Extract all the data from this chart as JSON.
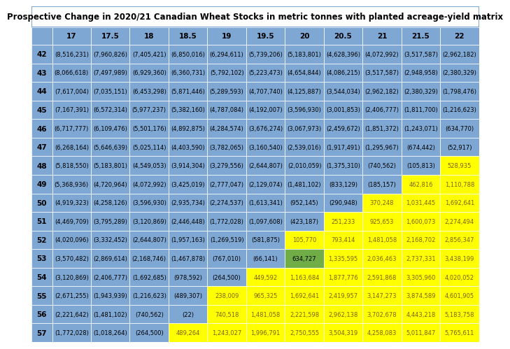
{
  "title": "Prospective Change in 2020/21 Canadian Wheat Stocks in metric tonnes with planted acreage-yield matrix",
  "col_headers": [
    "17",
    "17.5",
    "18",
    "18.5",
    "19",
    "19.5",
    "20",
    "20.5",
    "21",
    "21.5",
    "22"
  ],
  "row_headers": [
    "42",
    "43",
    "44",
    "45",
    "46",
    "47",
    "48",
    "49",
    "50",
    "51",
    "52",
    "53",
    "54",
    "55",
    "56",
    "57"
  ],
  "table_data": [
    [
      -8516231,
      -7960826,
      -7405421,
      -6850016,
      -6294611,
      -5739206,
      -5183801,
      -4628396,
      -4072992,
      -3517587,
      -2962182
    ],
    [
      -8066618,
      -7497989,
      -6929360,
      -6360731,
      -5792102,
      -5223473,
      -4654844,
      -4086215,
      -3517587,
      -2948958,
      -2380329
    ],
    [
      -7617004,
      -7035151,
      -6453298,
      -5871446,
      -5289593,
      -4707740,
      -4125887,
      -3544034,
      -2962182,
      -2380329,
      -1798476
    ],
    [
      -7167391,
      -6572314,
      -5977237,
      -5382160,
      -4787084,
      -4192007,
      -3596930,
      -3001853,
      -2406777,
      -1811700,
      -1216623
    ],
    [
      -6717777,
      -6109476,
      -5501176,
      -4892875,
      -4284574,
      -3676274,
      -3067973,
      -2459672,
      -1851372,
      -1243071,
      -634770
    ],
    [
      -6268164,
      -5646639,
      -5025114,
      -4403590,
      -3782065,
      -3160540,
      -2539016,
      -1917491,
      -1295967,
      -674442,
      -52917
    ],
    [
      -5818550,
      -5183801,
      -4549053,
      -3914304,
      -3279556,
      -2644807,
      -2010059,
      -1375310,
      -740562,
      -105813,
      528935
    ],
    [
      -5368936,
      -4720964,
      -4072992,
      -3425019,
      -2777047,
      -2129074,
      -1481102,
      -833129,
      -185157,
      462816,
      1110788
    ],
    [
      -4919323,
      -4258126,
      -3596930,
      -2935734,
      -2274537,
      -1613341,
      -952145,
      -290948,
      370248,
      1031445,
      1692641
    ],
    [
      -4469709,
      -3795289,
      -3120869,
      -2446448,
      -1772028,
      -1097608,
      -423187,
      251233,
      925653,
      1600073,
      2274494
    ],
    [
      -4020096,
      -3332452,
      -2644807,
      -1957163,
      -1269519,
      -581875,
      105770,
      793414,
      1481058,
      2168702,
      2856347
    ],
    [
      -3570482,
      -2869614,
      -2168746,
      -1467878,
      -767010,
      -66141,
      634727,
      1335595,
      2036463,
      2737331,
      3438199
    ],
    [
      -3120869,
      -2406777,
      -1692685,
      -978592,
      -264500,
      449592,
      1163684,
      1877776,
      2591868,
      3305960,
      4020052
    ],
    [
      -2671255,
      -1943939,
      -1216623,
      -489307,
      238009,
      965325,
      1692641,
      2419957,
      3147273,
      3874589,
      4601905
    ],
    [
      -2221642,
      -1481102,
      -740562,
      -22,
      740518,
      1481058,
      2221598,
      2962138,
      3702678,
      4443218,
      5183758
    ],
    [
      -1772028,
      -1018264,
      -264500,
      489264,
      1243027,
      1996791,
      2750555,
      3504319,
      4258083,
      5011847,
      5765611
    ]
  ],
  "header_bg": "#7fa7d4",
  "neg_bg": "#7fa7d4",
  "pos_bg_yellow": "#ffff00",
  "pos_bg_green": "#70ad47",
  "border_color": "#ffffff",
  "green_cell_row": 11,
  "green_cell_col": 6,
  "title_font_size": 8.5,
  "header_font_size": 7.5,
  "data_font_size": 6.0
}
